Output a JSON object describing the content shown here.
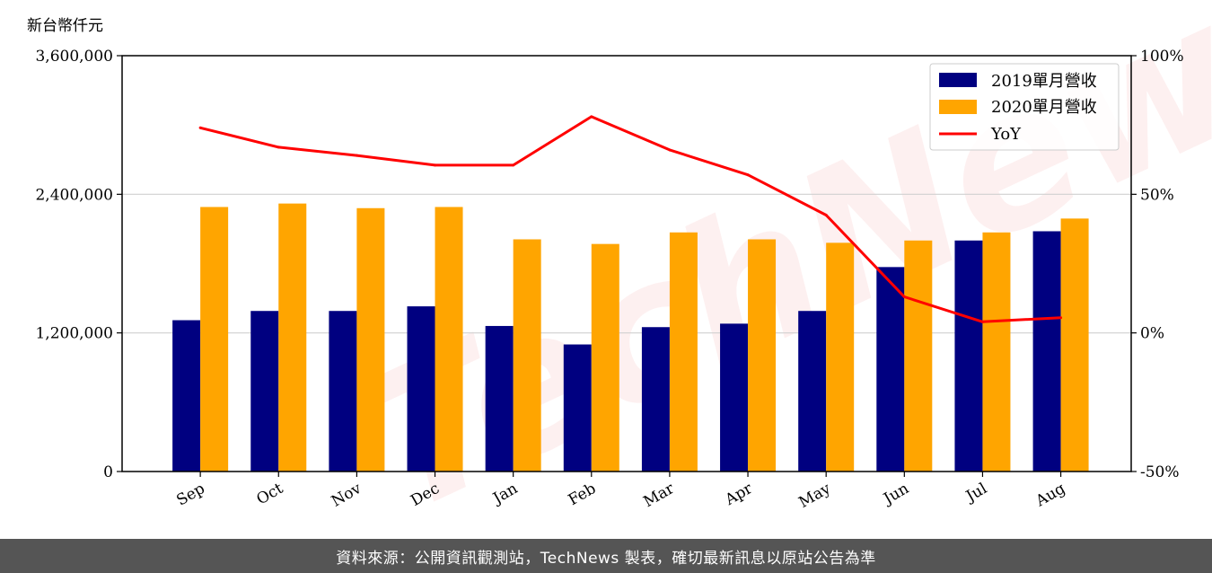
{
  "footer": {
    "source_text": "資料來源：公開資訊觀測站，TechNews 製表，確切最新訊息以原站公告為準"
  },
  "watermark": {
    "text": "TechNews"
  },
  "chart_data": {
    "type": "bar",
    "unit_label": "新台幣仟元",
    "categories": [
      "Sep",
      "Oct",
      "Nov",
      "Dec",
      "Jan",
      "Feb",
      "Mar",
      "Apr",
      "May",
      "Jun",
      "Jul",
      "Aug"
    ],
    "series": [
      {
        "name": "2019單月營收",
        "type": "bar",
        "axis": "left",
        "color": "#000080",
        "values": [
          1310000,
          1390000,
          1390000,
          1430000,
          1260000,
          1100000,
          1250000,
          1280000,
          1390000,
          1770000,
          2000000,
          2080000
        ]
      },
      {
        "name": "2020單月營收",
        "type": "bar",
        "axis": "left",
        "color": "#ffa500",
        "values": [
          2290000,
          2320000,
          2280000,
          2290000,
          2010000,
          1970000,
          2070000,
          2010000,
          1980000,
          2000000,
          2070000,
          2190000
        ]
      },
      {
        "name": "YoY",
        "type": "line",
        "axis": "right",
        "color": "#ff0000",
        "values": [
          74,
          67,
          64,
          60.5,
          60.5,
          78,
          66,
          57,
          42.5,
          13,
          4,
          5.5
        ]
      }
    ],
    "ylim_left": [
      0,
      3600000
    ],
    "yticks_left": [
      "0",
      "1,200,000",
      "2,400,000",
      "3,600,000"
    ],
    "yticks_left_values": [
      0,
      1200000,
      2400000,
      3600000
    ],
    "ylim_right": [
      -50,
      100
    ],
    "yticks_right": [
      "-50%",
      "0%",
      "50%",
      "100%"
    ],
    "yticks_right_values": [
      -50,
      0,
      50,
      100
    ],
    "grid": "horizontal",
    "legend_position": "top-right"
  }
}
